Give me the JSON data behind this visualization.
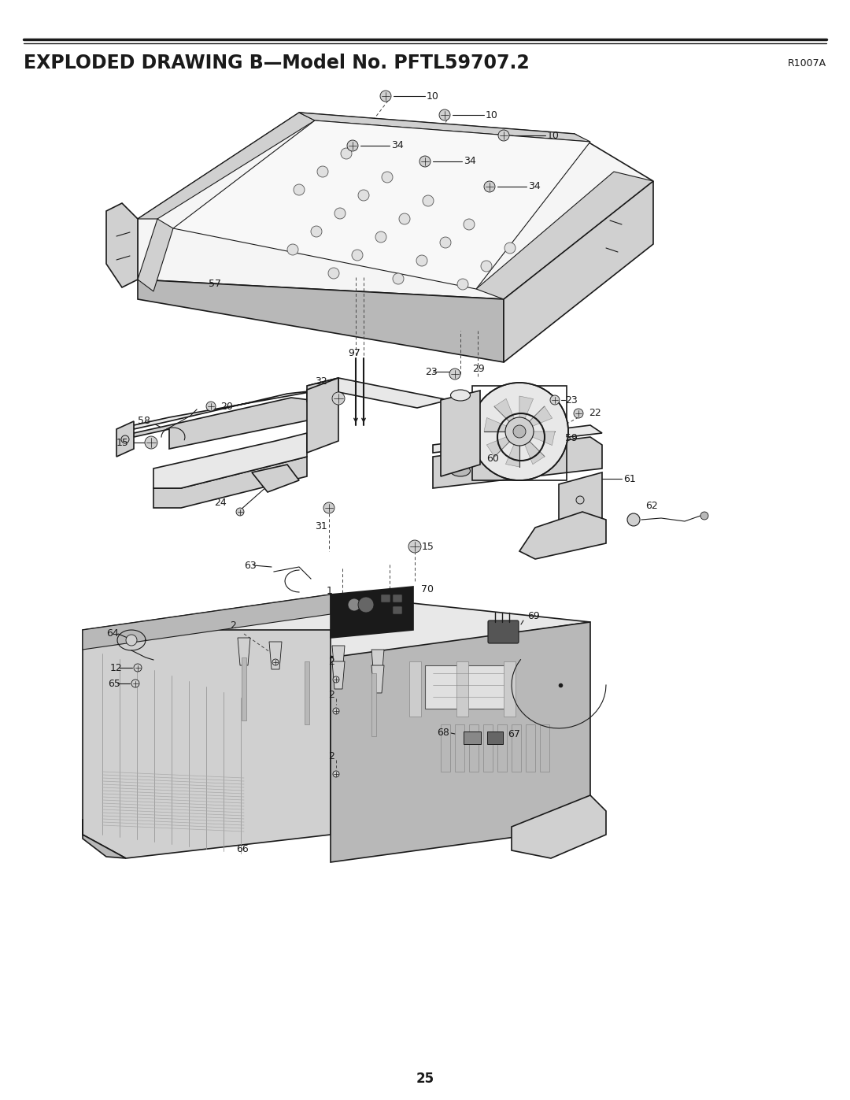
{
  "title": "EXPLODED DRAWING B—Model No. PFTL59707.2",
  "title_right": "R1007A",
  "page_number": "25",
  "bg": "#ffffff",
  "lc": "#1a1a1a",
  "gray1": "#e8e8e8",
  "gray2": "#d0d0d0",
  "gray3": "#b8b8b8",
  "gray4": "#f5f5f5",
  "dpi": 100,
  "fw": 10.8,
  "fh": 13.97
}
